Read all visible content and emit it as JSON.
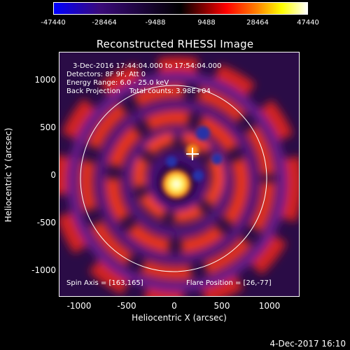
{
  "colorbar": {
    "labels": [
      "-47440",
      "-28464",
      "-9488",
      "9488",
      "28464",
      "47440"
    ],
    "colors": [
      "#0000ff",
      "#ff0000",
      "#ffff00",
      "#ffffff"
    ]
  },
  "title": "Reconstructed RHESSI Image",
  "info": {
    "line1": "3-Dec-2016 17:44:04.000 to 17:54:04.000",
    "line2": "Detectors: 8F 9F, Att 0",
    "line3": "Energy Range: 6.0 - 25.0 keV",
    "line4": "Back Projection    Total counts: 3.98E+04",
    "spin_axis": "Spin Axis = [163,165]",
    "flare_position": "Flare Position = [26,-77]"
  },
  "axes": {
    "ylabel": "Heliocentric Y (arcsec)",
    "xlabel": "Heliocentric X (arcsec)",
    "y_ticks": [
      "1000",
      "500",
      "0",
      "-500",
      "-1000"
    ],
    "x_ticks": [
      "-1000",
      "-500",
      "0",
      "500",
      "1000"
    ]
  },
  "footer_date": "4-Dec-2017 16:10"
}
